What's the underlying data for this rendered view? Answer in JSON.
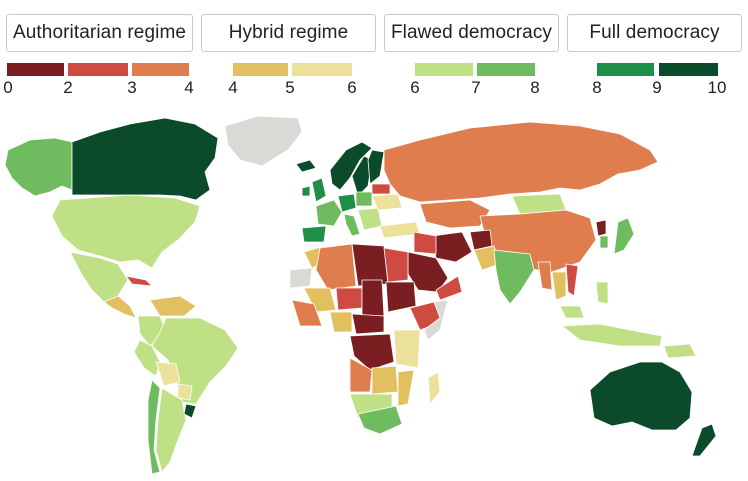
{
  "legend": {
    "categories": [
      {
        "label": "Authoritarian regime"
      },
      {
        "label": "Hybrid regime"
      },
      {
        "label": "Flawed democracy"
      },
      {
        "label": "Full democracy"
      }
    ],
    "ticks": [
      "0",
      "2",
      "3",
      "4",
      "4",
      "5",
      "6",
      "6",
      "7",
      "8",
      "8",
      "9",
      "10"
    ],
    "colors": {
      "auth_0_2": "#7a1e22",
      "auth_2_3": "#cf4a40",
      "auth_3_4": "#e07d4f",
      "hyb_4_5": "#e2c05f",
      "hyb_5_6": "#ece19a",
      "flaw_6_7": "#bfe084",
      "flaw_7_8": "#6fbb5f",
      "full_8_9": "#1e8f46",
      "full_9_10": "#0b4a2b",
      "no_data": "#d9d9d6"
    }
  }
}
